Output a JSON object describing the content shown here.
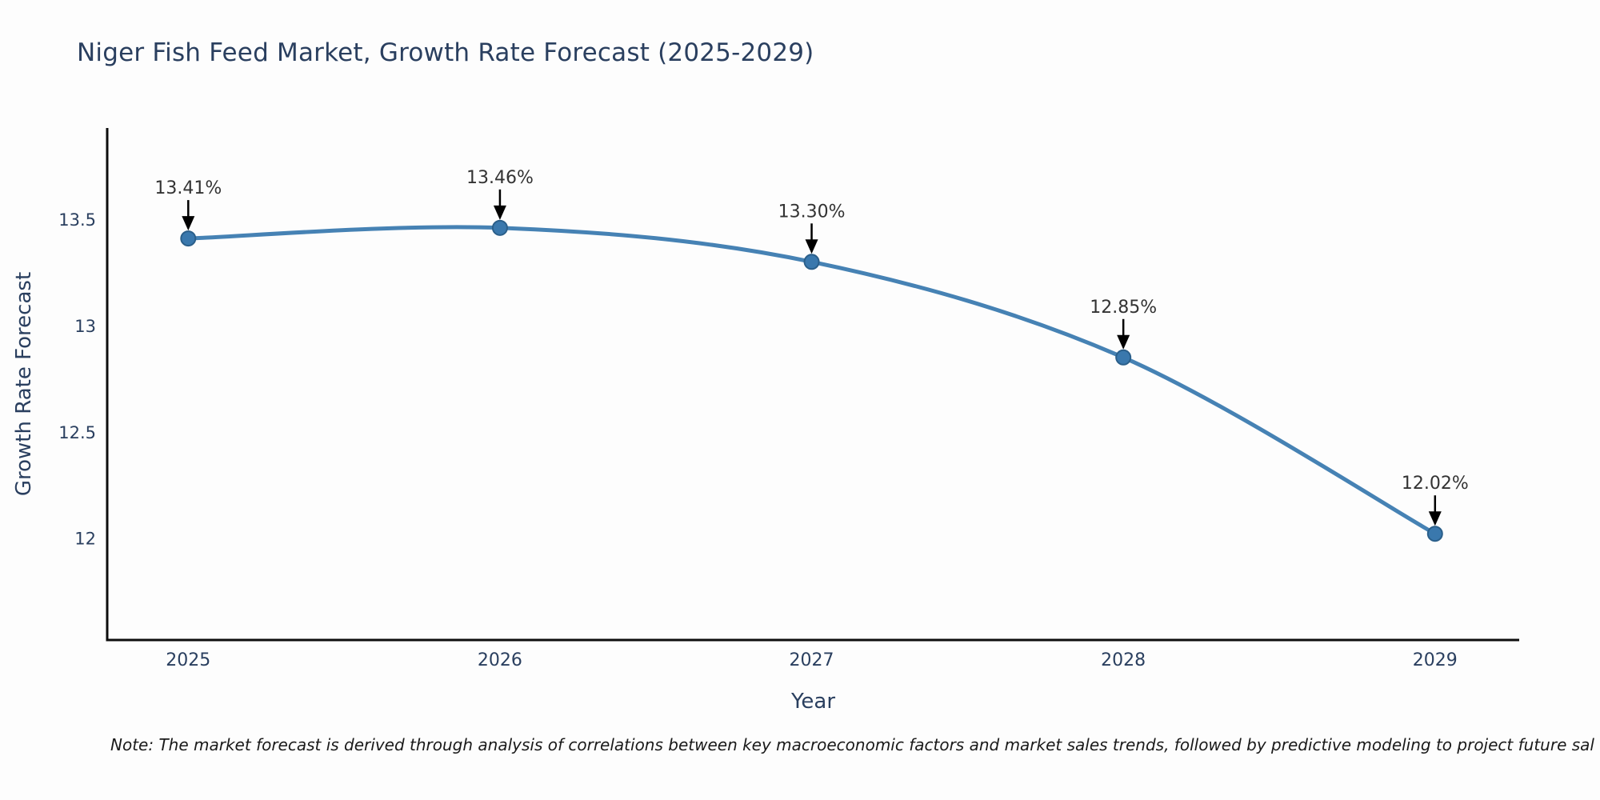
{
  "chart_data": {
    "type": "line",
    "title": "Niger Fish Feed Market, Growth Rate Forecast (2025-2029)",
    "xlabel": "Year",
    "ylabel": "Growth Rate Forecast",
    "x": [
      2025,
      2026,
      2027,
      2028,
      2029
    ],
    "values": [
      13.41,
      13.46,
      13.3,
      12.85,
      12.02
    ],
    "point_labels": [
      "13.41%",
      "13.46%",
      "13.30%",
      "12.85%",
      "12.02%"
    ],
    "x_tick_labels": [
      "2025",
      "2026",
      "2027",
      "2028",
      "2029"
    ],
    "x_tick_values": [
      2025,
      2026,
      2027,
      2028,
      2029
    ],
    "y_tick_labels": [
      "13.5",
      "13",
      "12.5",
      "12"
    ],
    "y_tick_values": [
      13.5,
      13.0,
      12.5,
      12.0
    ],
    "xlim": [
      2024.74,
      2029.27
    ],
    "ylim": [
      11.52,
      13.93
    ],
    "grid": false,
    "legend": null,
    "line_shape": "spline",
    "annotation_arrows": true,
    "colors": {
      "line": "#4682b4",
      "marker_fill": "#3a78ad",
      "marker_border": "#2b5f8a",
      "axis_line": "#0d0d0d",
      "title_text": "#2a3f5f",
      "tick_text": "#2a3f5f",
      "annotation_text": "#333333",
      "arrow": "#000000",
      "background": "#fdfdfd"
    }
  },
  "note": {
    "text": "Note: The market forecast is derived through analysis of correlations between key macroeconomic factors and market sales trends, followed by predictive modeling to project future sal"
  }
}
